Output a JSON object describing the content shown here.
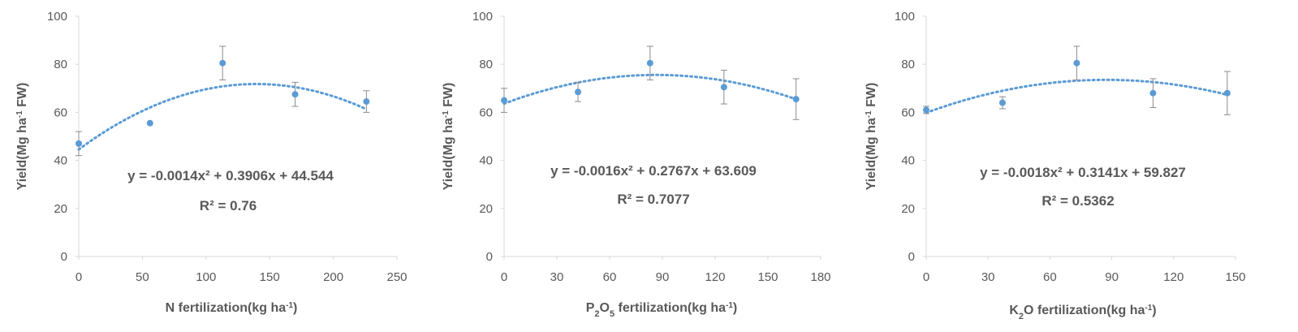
{
  "chart_data": [
    {
      "type": "scatter",
      "ylabel": "Yield(Mg ha-1 FW)",
      "xlabel": "N fertilization(kg ha-1)",
      "xlim": [
        0,
        250
      ],
      "ylim": [
        0,
        100
      ],
      "xticks": [
        "0",
        "50",
        "100",
        "150",
        "200",
        "250"
      ],
      "yticks": [
        "0",
        "20",
        "40",
        "60",
        "80",
        "100"
      ],
      "x": [
        0,
        56,
        113,
        170,
        226
      ],
      "y": [
        47,
        55.5,
        80.5,
        67.5,
        64.5
      ],
      "error": [
        5,
        0,
        7,
        5,
        4.5
      ],
      "trendline": {
        "type": "polynomial",
        "a": -0.0014,
        "b": 0.3906,
        "c": 44.544
      },
      "equation": "y = -0.0014x² + 0.3906x + 44.544",
      "r2": "R² = 0.76",
      "point_color": "#5b9bd5"
    },
    {
      "type": "scatter",
      "ylabel": "Yield(Mg ha-1 FW)",
      "xlabel": "P2O5 fertilization(kg ha-1)",
      "xlim": [
        0,
        180
      ],
      "ylim": [
        0,
        100
      ],
      "xticks": [
        "0",
        "30",
        "60",
        "90",
        "120",
        "150",
        "180"
      ],
      "yticks": [
        "0",
        "20",
        "40",
        "60",
        "80",
        "100"
      ],
      "x": [
        0,
        42,
        83,
        125,
        166
      ],
      "y": [
        65,
        68.5,
        80.5,
        70.5,
        65.5
      ],
      "error": [
        5,
        4,
        7,
        7,
        8.5
      ],
      "trendline": {
        "type": "polynomial",
        "a": -0.0016,
        "b": 0.2767,
        "c": 63.609
      },
      "equation": "y = -0.0016x² + 0.2767x + 63.609",
      "r2": "R² = 0.7077",
      "point_color": "#5b9bd5"
    },
    {
      "type": "scatter",
      "ylabel": "Yield(Mg ha-1 FW)",
      "xlabel": "K2O fertilization(kg ha-1)",
      "xlim": [
        0,
        150
      ],
      "ylim": [
        0,
        100
      ],
      "xticks": [
        "0",
        "30",
        "60",
        "90",
        "120",
        "150"
      ],
      "yticks": [
        "0",
        "20",
        "40",
        "60",
        "80",
        "100"
      ],
      "x": [
        0,
        37,
        73,
        110,
        146
      ],
      "y": [
        61,
        64,
        80.5,
        68,
        68
      ],
      "error": [
        1.5,
        2.5,
        7,
        6,
        9
      ],
      "trendline": {
        "type": "polynomial",
        "a": -0.0018,
        "b": 0.3141,
        "c": 59.827
      },
      "equation": "y = -0.0018x² + 0.3141x + 59.827",
      "r2": "R² = 0.5362",
      "point_color": "#5b9bd5"
    }
  ],
  "labels": {
    "ylabel_main": "Yield(Mg ha",
    "ylabel_sup": "-1",
    "ylabel_end": " FW)",
    "x1_main": "N fertilization(kg ha",
    "x2_pre": "P",
    "x2_sub1": "2",
    "x2_mid": "O",
    "x2_sub2": "5",
    "x2_main": " fertilization(kg ha",
    "x3_pre": "K",
    "x3_sub": "2",
    "x3_main": "O fertilization(kg ha",
    "x_sup": "-1",
    "x_end": ")"
  }
}
